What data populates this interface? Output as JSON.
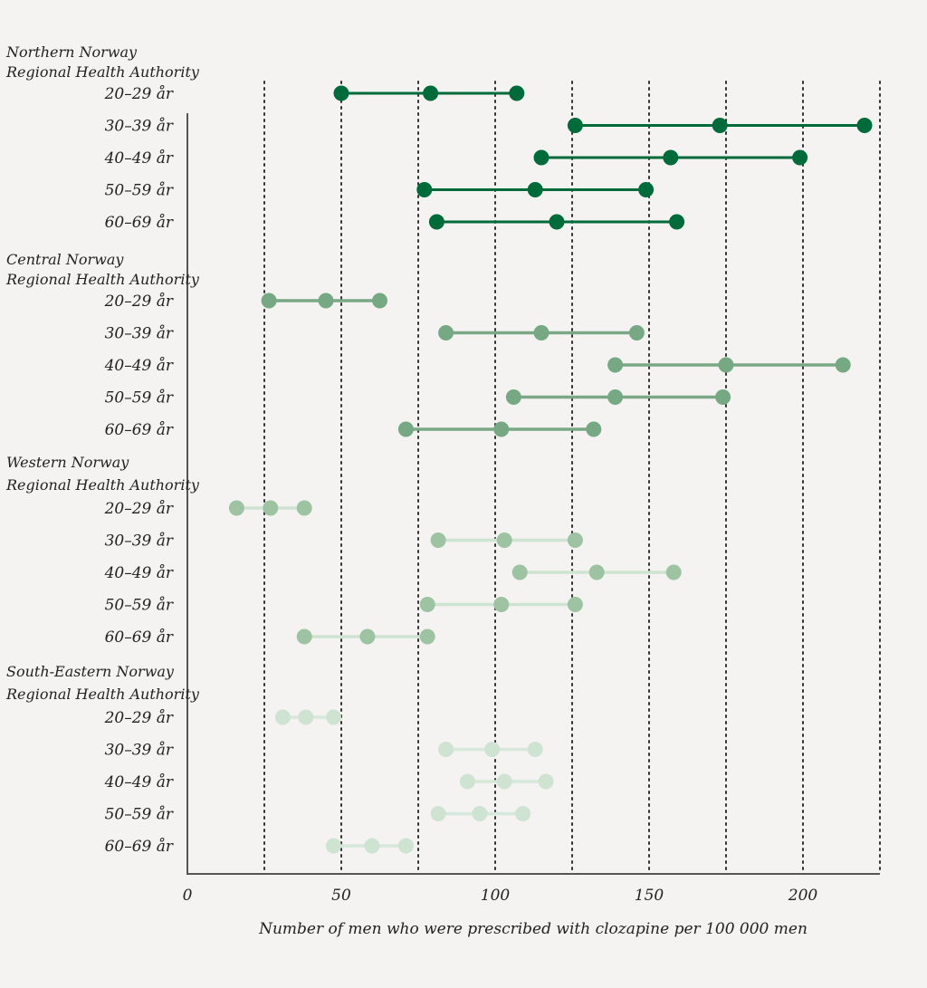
{
  "chart_data": {
    "type": "dumbbell",
    "xlabel": "Number of men who were prescribed with clozapine per 100 000 men",
    "xlim": [
      0,
      225
    ],
    "xticks": [
      0,
      50,
      100,
      150,
      200
    ],
    "grid": {
      "vertical_dotted": true,
      "at": [
        25,
        50,
        75,
        100,
        125,
        150,
        175,
        200,
        225
      ]
    },
    "groups": [
      {
        "name_lines": [
          "Northern Norway",
          "Regional Health Authority"
        ],
        "dot_color": "#006b3a",
        "line_color": "#006b3a",
        "rows": [
          {
            "label": "20–29 år",
            "values": [
              50,
              79,
              107
            ]
          },
          {
            "label": "30–39 år",
            "values": [
              126,
              173,
              220
            ]
          },
          {
            "label": "40–49 år",
            "values": [
              115,
              157,
              199
            ]
          },
          {
            "label": "50–59 år",
            "values": [
              77,
              113,
              149
            ]
          },
          {
            "label": "60–69 år",
            "values": [
              81,
              120,
              159
            ]
          }
        ]
      },
      {
        "name_lines": [
          "Central Norway",
          "Regional Health Authority"
        ],
        "dot_color": "#76a883",
        "line_color": "#7aa886",
        "rows": [
          {
            "label": "20–29 år",
            "values": [
              26.5,
              45,
              62.5
            ]
          },
          {
            "label": "30–39 år",
            "values": [
              84,
              115,
              146
            ]
          },
          {
            "label": "40–49 år",
            "values": [
              139,
              175,
              213
            ]
          },
          {
            "label": "50–59 år",
            "values": [
              106,
              139,
              174
            ]
          },
          {
            "label": "60–69 år",
            "values": [
              71,
              102,
              132
            ]
          }
        ]
      },
      {
        "name_lines": [
          "Western Norway",
          "Regional Health Authority"
        ],
        "dot_color": "#9dc3a2",
        "line_color": "#cfe3d2",
        "rows": [
          {
            "label": "20–29 år",
            "values": [
              16,
              27,
              38
            ]
          },
          {
            "label": "30–39 år",
            "values": [
              81.5,
              103,
              126
            ]
          },
          {
            "label": "40–49 år",
            "values": [
              108,
              133,
              158
            ]
          },
          {
            "label": "50–59 år",
            "values": [
              78,
              102,
              126
            ]
          },
          {
            "label": "60–69 år",
            "values": [
              38,
              58.5,
              78
            ]
          }
        ]
      },
      {
        "name_lines": [
          "South-Eastern Norway",
          "Regional Health Authority"
        ],
        "dot_color": "#cfe3d3",
        "line_color": "#d6e8d9",
        "rows": [
          {
            "label": "20–29 år",
            "values": [
              31,
              38.5,
              47.5
            ]
          },
          {
            "label": "30–39 år",
            "values": [
              84,
              99,
              113
            ]
          },
          {
            "label": "40–49 år",
            "values": [
              91,
              103,
              116.5
            ]
          },
          {
            "label": "50–59 år",
            "values": [
              81.5,
              95,
              109
            ]
          },
          {
            "label": "60–69 år",
            "values": [
              47.5,
              60,
              71
            ]
          }
        ]
      }
    ]
  }
}
